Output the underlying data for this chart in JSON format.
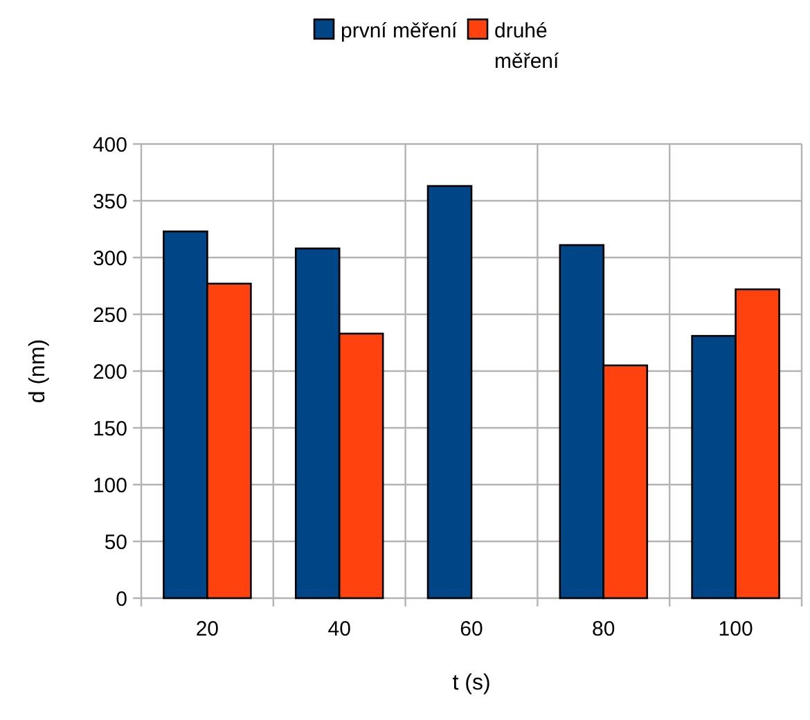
{
  "chart_data": {
    "type": "bar",
    "xlabel": "t (s)",
    "ylabel": "d (nm)",
    "categories": [
      "20",
      "40",
      "60",
      "80",
      "100"
    ],
    "series": [
      {
        "name": "první měření",
        "color": "#004586",
        "values": [
          323,
          308,
          363,
          311,
          231
        ]
      },
      {
        "name": "druhé měření",
        "color": "#ff420e",
        "values": [
          277,
          233,
          null,
          205,
          272
        ]
      }
    ],
    "ylim": [
      0,
      400
    ],
    "yticks": [
      0,
      50,
      100,
      150,
      200,
      250,
      300,
      350,
      400
    ],
    "grid": true,
    "legend": "top"
  }
}
